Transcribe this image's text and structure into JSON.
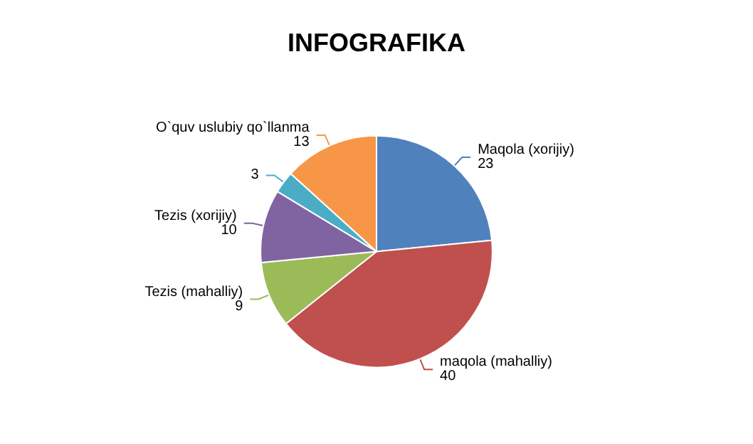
{
  "chart_data": {
    "type": "pie",
    "title": "INFOGRAFIKA",
    "categories": [
      "Maqola (xorijiy)",
      "maqola (mahalliy)",
      "Tezis (mahalliy)",
      "Tezis (xorijiy)",
      null,
      "O`quv uslubiy qo`llanma"
    ],
    "values": [
      23,
      40,
      9,
      10,
      3,
      13
    ],
    "colors": [
      "#4f81bd",
      "#c0504d",
      "#9bbb59",
      "#8064a2",
      "#4bacc6",
      "#f79646"
    ],
    "data_labels": true,
    "legend": false
  }
}
